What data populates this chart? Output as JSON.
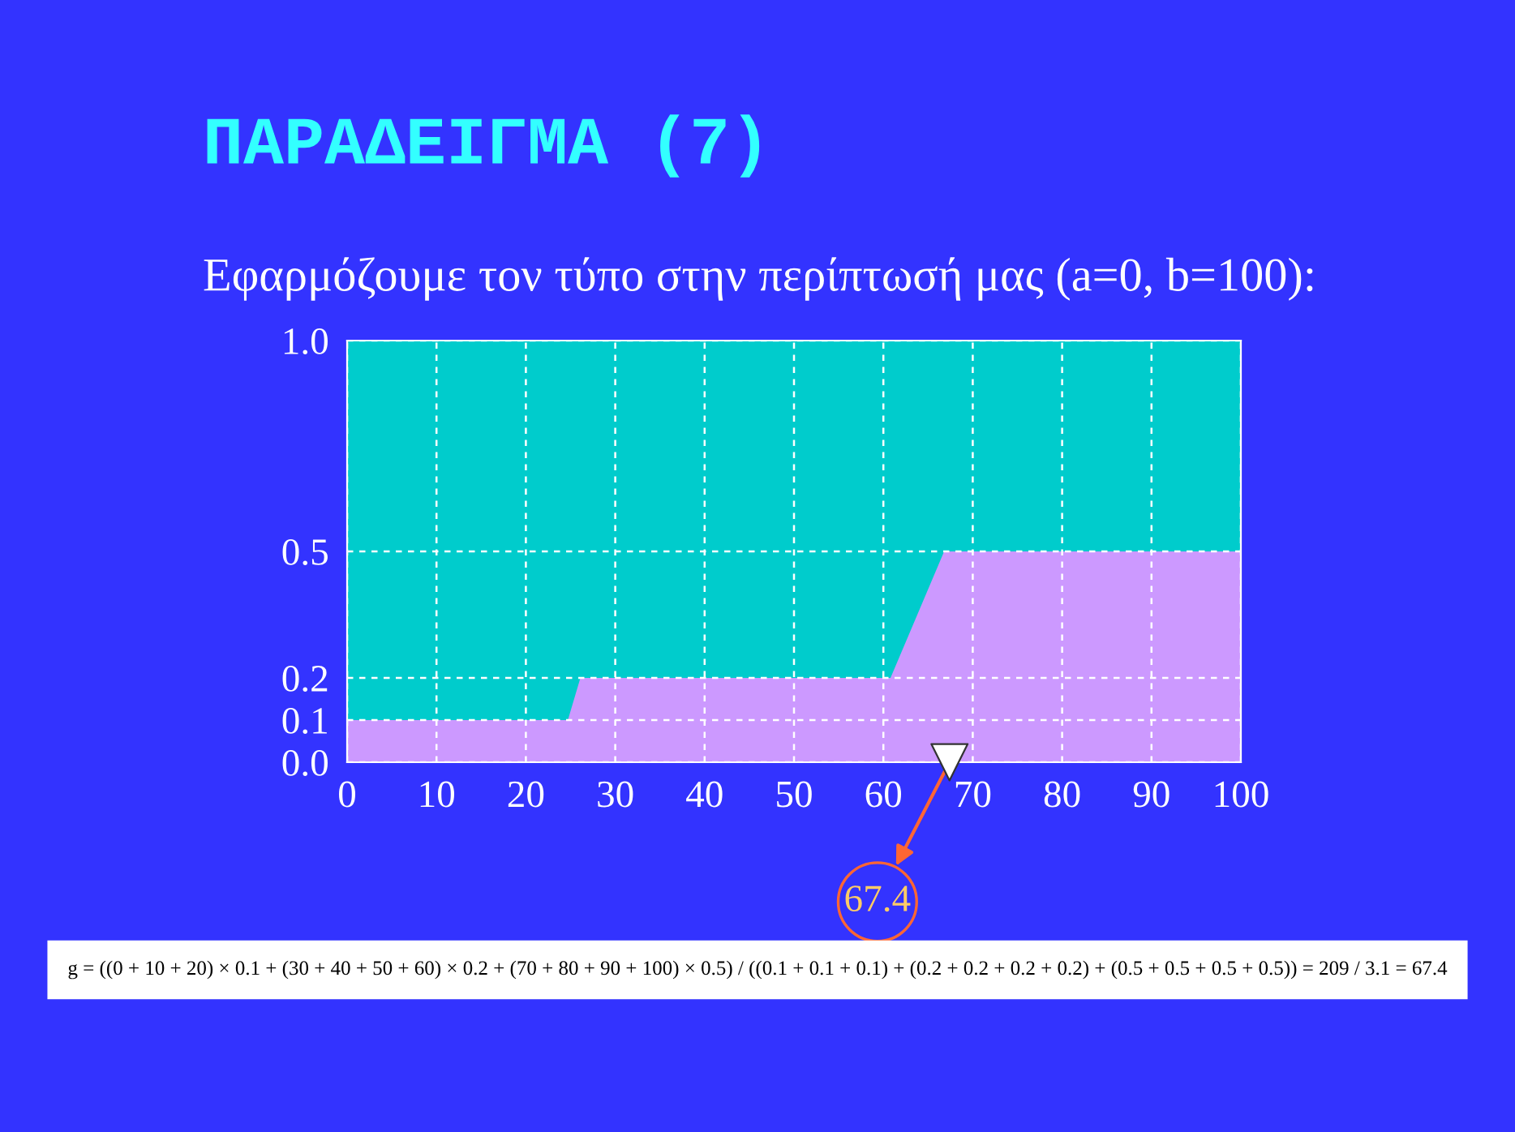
{
  "chart_data": {
    "type": "area",
    "title": "ΠΑΡΑΔΕΙΓΜΑ (7)",
    "subtitle": "Εφαρμόζουμε τον τύπο στην περίπτωσή μας (a=0, b=100):",
    "bands": [
      {
        "axis": "y",
        "from": 0,
        "to": 1,
        "color": "#00cccc"
      }
    ],
    "series": [
      {
        "color": "#cc99ff",
        "x": [
          0,
          24.7,
          26.1,
          60.8,
          66.8,
          100
        ],
        "values": [
          0.1,
          0.1,
          0.2,
          0.2,
          0.5,
          0.5
        ]
      },
      {
        "type": "scatter",
        "color": "#ffffff",
        "marker": "triangle",
        "x": [
          67.4
        ],
        "values": [
          0
        ]
      }
    ],
    "xlim": [
      0,
      100
    ],
    "xticks": [
      0,
      10,
      20,
      30,
      40,
      50,
      60,
      70,
      80,
      90,
      100
    ],
    "ylim": [
      0,
      1
    ],
    "yticks": [
      {
        "value": 0,
        "label": "0.0"
      },
      {
        "value": 0.1,
        "label": "0.1"
      },
      {
        "value": 0.2,
        "label": "0.2"
      },
      {
        "value": 0.5,
        "label": "0.5"
      },
      {
        "value": 1.0,
        "label": "1.0"
      }
    ],
    "grid": true,
    "annotations": [
      {
        "text": "67.4",
        "x": 67.4,
        "y": 0
      },
      "g = ((0 + 10 + 20) × 0.1 + (30 + 40 + 50 + 60) × 0.2 + (70 + 80 + 90 + 100) × 0.5) / ((0.1 + 0.1 + 0.1) + (0.2 + 0.2 + 0.2 + 0.2) + (0.5 + 0.5 + 0.5 + 0.5)) = 209 / 3.1 = 67.4"
    ]
  }
}
